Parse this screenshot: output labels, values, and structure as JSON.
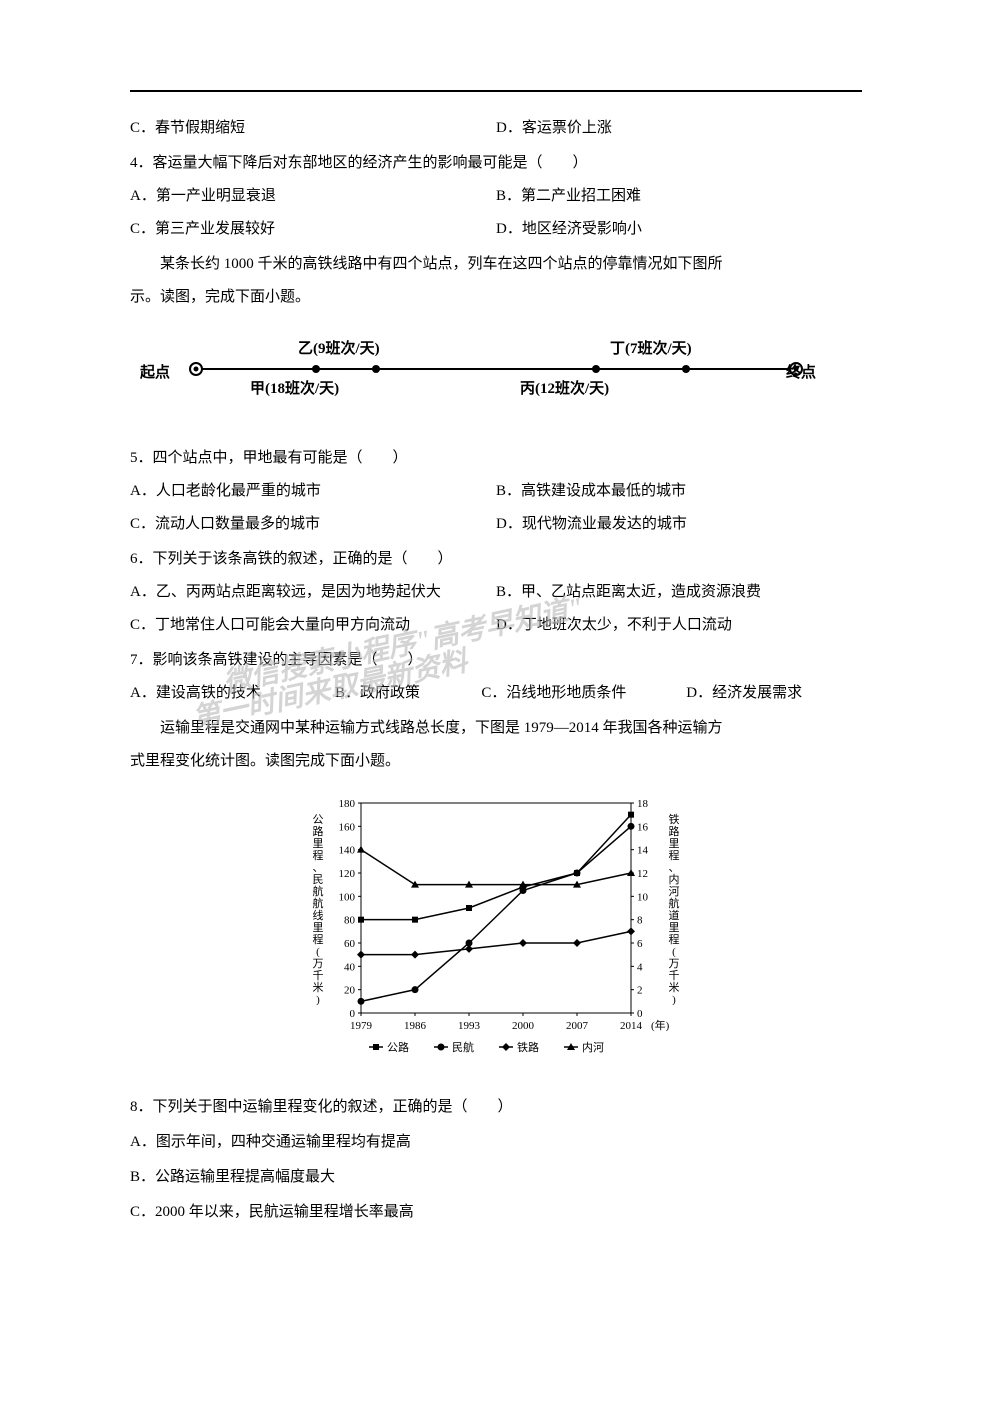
{
  "q3_opts": {
    "c": "C．春节假期缩短",
    "d": "D．客运票价上涨"
  },
  "q4": {
    "stem": "4．客运量大幅下降后对东部地区的经济产生的影响最可能是（　　）",
    "a": "A．第一产业明显衰退",
    "b": "B．第二产业招工困难",
    "c": "C．第三产业发展较好",
    "d": "D．地区经济受影响小"
  },
  "passage1": {
    "p1": "某条长约 1000 千米的高铁线路中有四个站点，列车在这四个站点的停靠情况如下图所",
    "p2": "示。读图，完成下面小题。"
  },
  "rail": {
    "start": "起点",
    "end": "终点",
    "yi": "乙(9班次/天)",
    "jia": "甲(18班次/天)",
    "ding": "丁(7班次/天)",
    "bing": "丙(12班次/天)"
  },
  "q5": {
    "stem": "5．四个站点中，甲地最有可能是（　　）",
    "a": "A．人口老龄化最严重的城市",
    "b": "B．高铁建设成本最低的城市",
    "c": "C．流动人口数量最多的城市",
    "d": "D．现代物流业最发达的城市"
  },
  "q6": {
    "stem": "6．下列关于该条高铁的叙述，正确的是（　　）",
    "a": "A．乙、丙两站点距离较远，是因为地势起伏大",
    "b": "B．甲、乙站点距离太近，造成资源浪费",
    "c": "C．丁地常住人口可能会大量向甲方向流动",
    "d": "D．丁地班次太少，不利于人口流动"
  },
  "q7": {
    "stem": "7．影响该条高铁建设的主导因素是（　　）",
    "a": "A．建设高铁的技术",
    "b": "B．政府政策",
    "c": "C．沿线地形地质条件",
    "d": "D．经济发展需求"
  },
  "passage2": {
    "p1": "运输里程是交通网中某种运输方式线路总长度，下图是 1979—2014 年我国各种运输方",
    "p2": "式里程变化统计图。读图完成下面小题。"
  },
  "chart": {
    "left_axis_label": "公路里程、民航航线里程(万千米)",
    "right_axis_label": "铁路里程、内河航道里程(万千米)",
    "x_label": "(年)",
    "left_ticks": [
      0,
      20,
      40,
      60,
      80,
      100,
      120,
      140,
      160,
      180
    ],
    "right_ticks": [
      0,
      2,
      4,
      6,
      8,
      10,
      12,
      14,
      16,
      18
    ],
    "years": [
      "1979",
      "1986",
      "1993",
      "2000",
      "2007",
      "2014"
    ],
    "series": {
      "road": {
        "label": "公路",
        "marker": "square",
        "values": [
          80,
          80,
          90,
          108,
          120,
          170
        ]
      },
      "aviation": {
        "label": "民航",
        "marker": "circle",
        "values": [
          10,
          20,
          60,
          105,
          120,
          160
        ]
      },
      "rail": {
        "label": "铁路",
        "marker": "diamond",
        "axis": "right",
        "values": [
          5,
          5,
          5.5,
          6,
          6,
          7
        ]
      },
      "river": {
        "label": "内河",
        "marker": "triangle",
        "axis": "right",
        "values": [
          14,
          11,
          11,
          11,
          11,
          12
        ]
      }
    },
    "legend": [
      "公路",
      "民航",
      "铁路",
      "内河"
    ],
    "colors": {
      "axis": "#000000",
      "grid": "#000000",
      "series": "#000000",
      "bg": "#ffffff"
    }
  },
  "q8": {
    "stem": "8．下列关于图中运输里程变化的叙述，正确的是（　　）",
    "a": "A．图示年间，四种交通运输里程均有提高",
    "b": "B．公路运输里程提高幅度最大",
    "c": "C．2000 年以来，民航运输里程增长率最高"
  },
  "watermark": {
    "l1": "微信搜索小程序\"高考早知道\"",
    "l2": "第一时间来取最新资料"
  }
}
